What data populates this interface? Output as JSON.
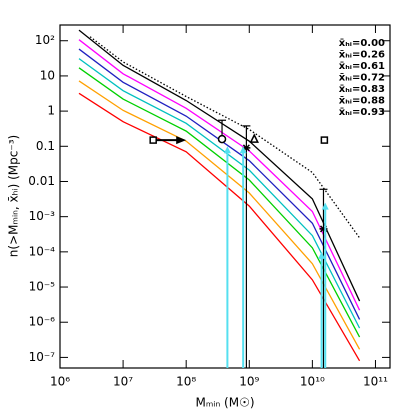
{
  "chart_data": {
    "type": "line",
    "xlabel": "Mₘᵢₙ (M☉)",
    "ylabel": "n(>Mₘᵢₙ, x̄ₕᵢ) (Mpc⁻³)",
    "xscale": "log",
    "yscale": "log",
    "xlim": [
      1000000.0,
      170000000000.0
    ],
    "ylim": [
      5e-08,
      280
    ],
    "xticks": [
      {
        "value": 1000000.0,
        "label": "10⁶"
      },
      {
        "value": 10000000.0,
        "label": "10⁷"
      },
      {
        "value": 100000000.0,
        "label": "10⁸"
      },
      {
        "value": 1000000000.0,
        "label": "10⁹"
      },
      {
        "value": 10000000000.0,
        "label": "10¹⁰"
      },
      {
        "value": 100000000000.0,
        "label": "10¹¹"
      }
    ],
    "yticks": [
      {
        "value": 100,
        "label": "10²"
      },
      10,
      1,
      0.1,
      0.01,
      {
        "value": 0.001,
        "label": "10⁻³"
      },
      {
        "value": 0.0001,
        "label": "10⁻⁴"
      },
      {
        "value": 1e-05,
        "label": "10⁻⁵"
      },
      {
        "value": 1e-06,
        "label": "10⁻⁶"
      },
      {
        "value": 1e-07,
        "label": "10⁻⁷"
      }
    ],
    "legend_loc": "upper right",
    "x": [
      2000000.0,
      10000000.0,
      100000000.0,
      1000000000.0,
      10000000000.0,
      56000000000.0
    ],
    "series": [
      {
        "name": "x̄ₕᵢ=0.00",
        "color": "#000000",
        "values": [
          200,
          20,
          2,
          0.14,
          0.0032,
          4e-06
        ]
      },
      {
        "name": "x̄ₕᵢ=0.26",
        "color": "#ff00ff",
        "values": [
          107,
          11.5,
          1.2,
          0.074,
          0.0014,
          2.2e-06
        ]
      },
      {
        "name": "x̄ₕᵢ=0.61",
        "color": "#2020c0",
        "values": [
          58,
          6.6,
          0.72,
          0.039,
          0.00065,
          1.2e-06
        ]
      },
      {
        "name": "x̄ₕᵢ=0.72",
        "color": "#00c0c0",
        "values": [
          31,
          3.8,
          0.45,
          0.021,
          0.00029,
          6.8e-07
        ]
      },
      {
        "name": "x̄ₕᵢ=0.83",
        "color": "#00d000",
        "values": [
          17,
          2.2,
          0.27,
          0.011,
          0.00013,
          3.8e-07
        ]
      },
      {
        "name": "x̄ₕᵢ=0.88",
        "color": "#ffa000",
        "values": [
          7.2,
          1.05,
          0.14,
          0.0047,
          4.6e-05,
          1.7e-07
        ]
      },
      {
        "name": "x̄ₕᵢ=0.93",
        "color": "#ff0000",
        "values": [
          3.2,
          0.5,
          0.07,
          0.002,
          1.6e-05,
          8e-08
        ]
      }
    ],
    "dotted": {
      "color": "#000000",
      "x": [
        3000000.0,
        10000000.0,
        100000000.0,
        1000000000.0,
        10000000000.0,
        56000000000.0
      ],
      "values": [
        130,
        25,
        2.6,
        0.3,
        0.018,
        0.00025
      ]
    },
    "points": [
      {
        "shape": "square",
        "x": 30000000.0,
        "y": 0.15,
        "x_to": 100000000.0,
        "color": "#000000"
      },
      {
        "shape": "circle",
        "x": 370000000.0,
        "y": 0.16,
        "ylow": 0.16,
        "yhigh": 0.55,
        "color": "#000000"
      },
      {
        "shape": "triangle",
        "x": 1200000000.0,
        "y": 0.16,
        "color": "#000000"
      },
      {
        "shape": "square",
        "x": 15500000000.0,
        "y": 0.15,
        "color": "#000000"
      },
      {
        "shape": "star",
        "x": 900000000.0,
        "y": 0.09,
        "ylow": 5e-08,
        "yhigh": 0.38,
        "color": "#000000"
      },
      {
        "shape": "star",
        "x": 15000000000.0,
        "y": 0.00045,
        "ylow": 5e-08,
        "yhigh": 0.006,
        "color": "#000000"
      },
      {
        "shape": "arrow",
        "x": 450000000.0,
        "ylow": 5e-08,
        "yhigh": 0.1,
        "color": "#55e0f0"
      },
      {
        "shape": "arrow",
        "x": 800000000.0,
        "ylow": 5e-08,
        "yhigh": 0.1,
        "color": "#55e0f0"
      },
      {
        "shape": "arrow",
        "x": 16000000000.0,
        "ylow": 5e-08,
        "yhigh": 0.0025,
        "color": "#55e0f0"
      },
      {
        "shape": "arrow",
        "x": 14000000000.0,
        "ylow": 5e-08,
        "yhigh": 0.0001,
        "color": "#55e0f0"
      }
    ]
  }
}
